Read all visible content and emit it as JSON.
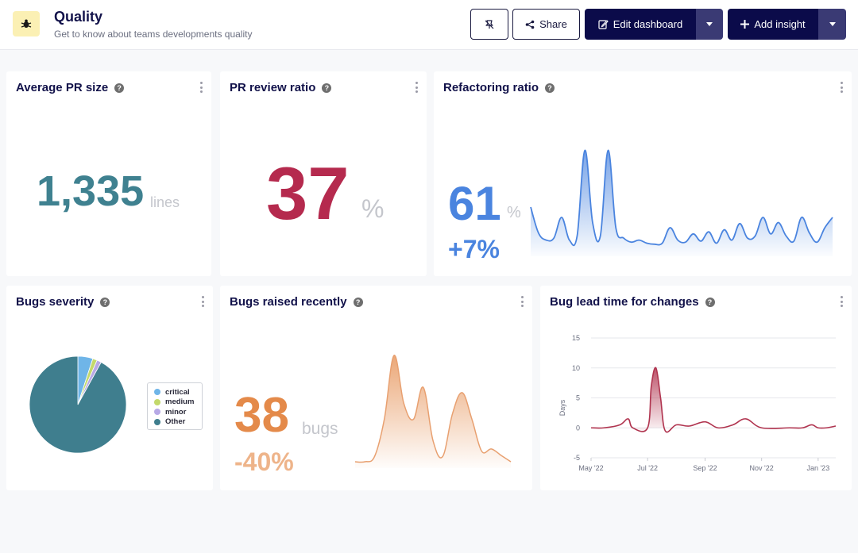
{
  "header": {
    "title": "Quality",
    "subtitle": "Get to know about teams developments quality",
    "share_label": "Share",
    "edit_label": "Edit dashboard",
    "add_label": "Add insight"
  },
  "cards": {
    "avg_pr": {
      "title": "Average PR size",
      "value": "1,335",
      "unit": "lines"
    },
    "pr_review": {
      "title": "PR review ratio",
      "value": "37",
      "unit": "%"
    },
    "refactoring": {
      "title": "Refactoring ratio",
      "value": "61",
      "unit": "%",
      "delta": "+7%"
    },
    "bugs_severity": {
      "title": "Bugs severity",
      "legend": [
        "critical",
        "medium",
        "minor",
        "Other"
      ]
    },
    "bugs_raised": {
      "title": "Bugs raised recently",
      "value": "38",
      "unit": "bugs",
      "delta": "-40%"
    },
    "bug_lead": {
      "title": "Bug lead time for changes",
      "y_label": "Days",
      "y_ticks": [
        "15",
        "10",
        "5",
        "0",
        "-5"
      ],
      "x_ticks": [
        "May '22",
        "Jul '22",
        "Sep '22",
        "Nov '22",
        "Jan '23"
      ]
    }
  },
  "colors": {
    "teal": "#3f8190",
    "crimson": "#b52a4e",
    "blue": "#4a84df",
    "orange": "#e48a4a",
    "navy": "#0b0b4a",
    "line_red": "#b0344f"
  },
  "chart_data": [
    {
      "type": "pie",
      "title": "Bugs severity",
      "categories": [
        "critical",
        "medium",
        "minor",
        "Other"
      ],
      "values": [
        5,
        1.5,
        1.5,
        92
      ],
      "colors": [
        "#6fb5e8",
        "#c3d96b",
        "#b7a9e6",
        "#3f7e8e"
      ]
    },
    {
      "type": "line",
      "title": "Bug lead time for changes",
      "ylabel": "Days",
      "ylim": [
        -5,
        15
      ],
      "x_ticks": [
        "May '22",
        "Jul '22",
        "Sep '22",
        "Nov '22",
        "Jan '23"
      ],
      "grid": true,
      "x": [
        "2022-05-01",
        "2022-05-15",
        "2022-06-01",
        "2022-06-10",
        "2022-06-15",
        "2022-07-01",
        "2022-07-05",
        "2022-07-10",
        "2022-07-15",
        "2022-07-20",
        "2022-08-01",
        "2022-08-15",
        "2022-09-01",
        "2022-09-15",
        "2022-10-01",
        "2022-10-15",
        "2022-11-01",
        "2022-12-01",
        "2022-12-15",
        "2022-12-25",
        "2023-01-01",
        "2023-01-10",
        "2023-01-20"
      ],
      "values": [
        0,
        0,
        0.5,
        1.5,
        0,
        0,
        7,
        10,
        5,
        -0.5,
        0.5,
        0.3,
        1,
        0,
        0.5,
        1.5,
        0,
        0,
        0,
        0.5,
        0,
        0,
        0.3
      ]
    }
  ]
}
